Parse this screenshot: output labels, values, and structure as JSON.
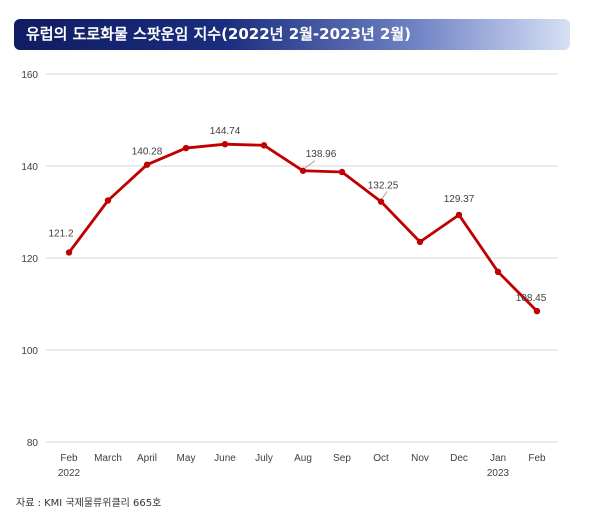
{
  "header": {
    "title": "유럽의 도로화물 스팟운임 지수(2022년 2월-2023년 2월)"
  },
  "source": {
    "text": "자료 : KMI 국제물류위클리 665호"
  },
  "colors": {
    "line": "#c00000",
    "grid": "#d9d9d9",
    "label": "#404040"
  },
  "chart_data": {
    "type": "line",
    "title": "",
    "xlabel": "",
    "ylabel": "",
    "categories": [
      "Feb",
      "March",
      "April",
      "May",
      "June",
      "July",
      "Aug",
      "Sep",
      "Oct",
      "Nov",
      "Dec",
      "Jan",
      "Feb"
    ],
    "year_labels": [
      {
        "index": 0,
        "text": "2022"
      },
      {
        "index": 11,
        "text": "2023"
      }
    ],
    "ylim": [
      80,
      160
    ],
    "yticks": [
      80,
      100,
      120,
      140,
      160
    ],
    "grid": true,
    "legend": "none",
    "series": [
      {
        "values": [
          121.2,
          132.5,
          140.28,
          143.9,
          144.74,
          144.5,
          138.96,
          138.7,
          132.25,
          123.5,
          129.37,
          117.0,
          108.45
        ]
      }
    ],
    "data_labels": [
      {
        "index": 0,
        "text": "121.2"
      },
      {
        "index": 2,
        "text": "140.28"
      },
      {
        "index": 4,
        "text": "144.74"
      },
      {
        "index": 6,
        "text": "138.96"
      },
      {
        "index": 8,
        "text": "132.25"
      },
      {
        "index": 10,
        "text": "129.37"
      },
      {
        "index": 12,
        "text": "108.45"
      }
    ]
  }
}
